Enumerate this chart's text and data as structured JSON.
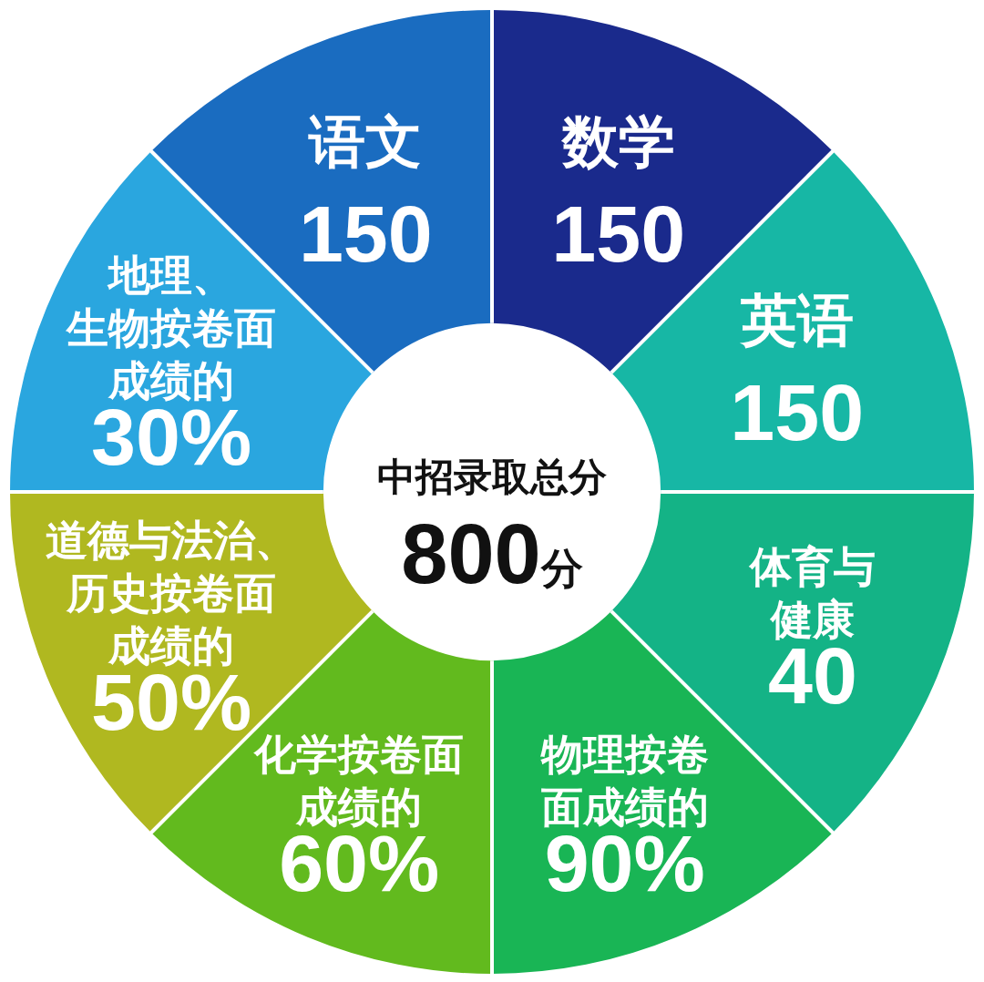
{
  "chart_data": {
    "type": "donut",
    "title": "中招录取总分",
    "subtitle": "800分",
    "categories": [
      "数学\n150",
      "英语\n150",
      "体育与健康\n40",
      "物理按卷面成绩的\n90%",
      "化学按卷面成绩的\n60%",
      "道德与法治、历史按卷面成绩的\n50%",
      "地理、生物按卷面成绩的\n30%",
      "语文\n150"
    ],
    "values": [
      12.5,
      12.5,
      12.5,
      12.5,
      12.5,
      12.5,
      12.5,
      12.5
    ],
    "colors": [
      "#1a2a8c",
      "#17b7a5",
      "#14b386",
      "#19b555",
      "#62ba1e",
      "#b0b820",
      "#2aa6df",
      "#1a6cc0"
    ]
  }
}
